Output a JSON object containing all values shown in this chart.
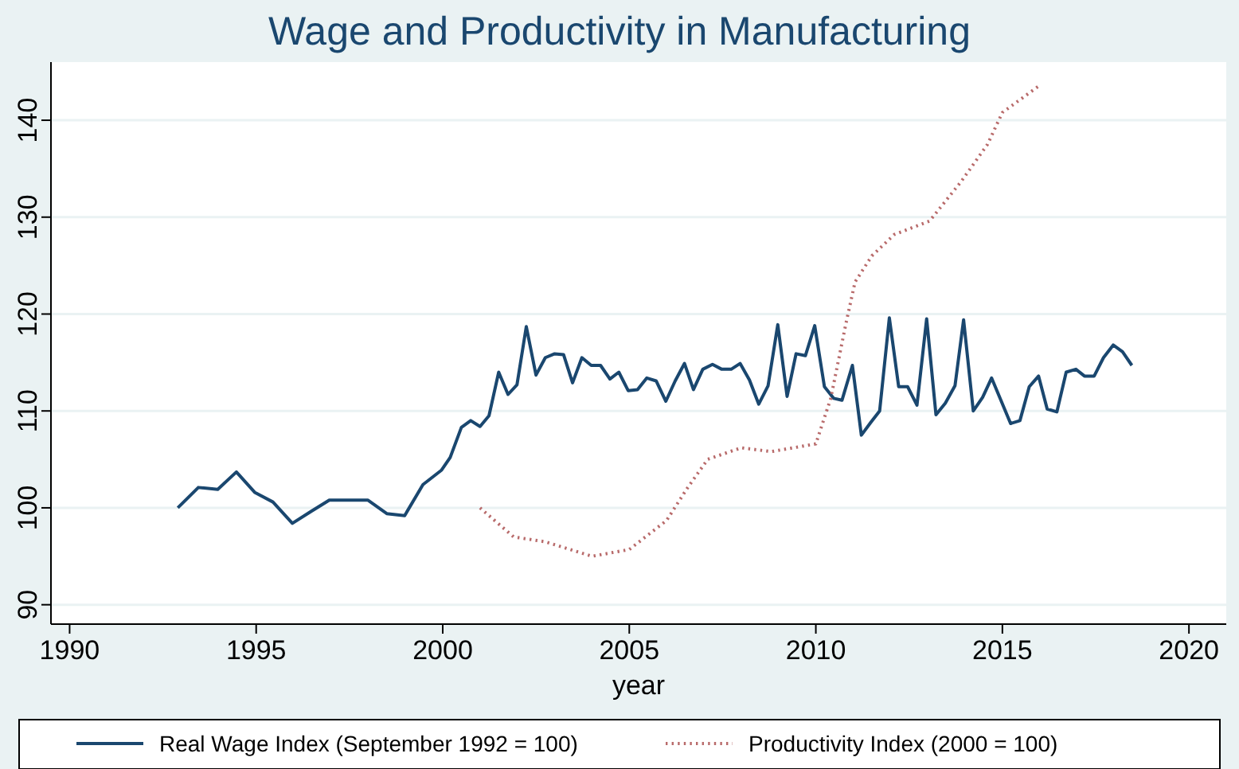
{
  "chart_data": {
    "type": "line",
    "title": "Wage and Productivity in Manufacturing",
    "xlabel": "year",
    "xlim": [
      1989.5,
      2021
    ],
    "xticks": [
      1990,
      1995,
      2000,
      2005,
      2010,
      2015,
      2020
    ],
    "ylim": [
      88,
      146
    ],
    "yticks": [
      90,
      100,
      110,
      120,
      130,
      140
    ],
    "grid": "y",
    "legend": "bottom",
    "marker": "none",
    "series": [
      {
        "name": "Real Wage Index (September 1992 = 100)",
        "color": "#1a476f",
        "line_style": "solid",
        "x": [
          1992.9,
          1993.45,
          1993.97,
          1994.47,
          1994.96,
          1995.45,
          1995.97,
          1996.46,
          1996.96,
          1997.99,
          1998.5,
          1998.98,
          1999.47,
          1999.97,
          2000.2,
          2000.5,
          2000.75,
          2001.0,
          2001.24,
          2001.5,
          2001.75,
          2001.99,
          2002.24,
          2002.5,
          2002.75,
          2003.0,
          2003.24,
          2003.48,
          2003.73,
          2003.98,
          2004.23,
          2004.48,
          2004.72,
          2004.97,
          2005.22,
          2005.47,
          2005.72,
          2005.98,
          2006.23,
          2006.48,
          2006.72,
          2006.97,
          2007.23,
          2007.48,
          2007.73,
          2007.97,
          2008.22,
          2008.47,
          2008.72,
          2008.98,
          2009.23,
          2009.47,
          2009.72,
          2009.97,
          2010.23,
          2010.48,
          2010.7,
          2010.98,
          2011.22,
          2011.47,
          2011.71,
          2011.97,
          2012.22,
          2012.46,
          2012.71,
          2012.97,
          2013.22,
          2013.47,
          2013.73,
          2013.96,
          2014.22,
          2014.47,
          2014.71,
          2014.96,
          2015.22,
          2015.47,
          2015.72,
          2015.97,
          2016.2,
          2016.46,
          2016.71,
          2016.97,
          2017.2,
          2017.46,
          2017.71,
          2017.97,
          2018.22,
          2018.47
        ],
        "values": [
          100.0,
          102.1,
          101.9,
          103.7,
          101.6,
          100.6,
          98.4,
          99.6,
          100.8,
          100.8,
          99.4,
          99.2,
          102.4,
          103.9,
          105.2,
          108.3,
          109.0,
          108.4,
          109.5,
          114.0,
          111.7,
          112.7,
          118.7,
          113.7,
          115.5,
          115.9,
          115.8,
          112.9,
          115.5,
          114.7,
          114.7,
          113.3,
          114.0,
          112.1,
          112.2,
          113.4,
          113.1,
          111.0,
          113.1,
          114.9,
          112.2,
          114.3,
          114.8,
          114.3,
          114.3,
          114.9,
          113.2,
          110.7,
          112.6,
          118.9,
          111.5,
          115.9,
          115.7,
          118.8,
          112.5,
          111.3,
          111.1,
          114.7,
          107.5,
          108.8,
          110.0,
          119.6,
          112.5,
          112.5,
          110.6,
          119.5,
          109.6,
          110.8,
          112.6,
          119.4,
          110.0,
          111.4,
          113.4,
          111.1,
          108.7,
          109.0,
          112.5,
          113.6,
          110.2,
          109.9,
          114.0,
          114.3,
          113.6,
          113.6,
          115.5,
          116.8,
          116.1,
          114.7
        ]
      },
      {
        "name": "Productivity Index (2000 = 100)",
        "color": "#b86a6a",
        "line_style": "dotted",
        "x": [
          2001.0,
          2001.9,
          2002.75,
          2004.0,
          2005.0,
          2006.0,
          2006.55,
          2007.1,
          2008.0,
          2008.8,
          2010.0,
          2010.4,
          2010.8,
          2011.05,
          2011.5,
          2012.1,
          2013.05,
          2013.9,
          2014.6,
          2015.0,
          2016.0
        ],
        "values": [
          100.0,
          97.0,
          96.5,
          95.0,
          95.7,
          98.7,
          102.0,
          105.0,
          106.2,
          105.8,
          106.6,
          111.3,
          118.9,
          123.3,
          126.0,
          128.2,
          129.6,
          133.7,
          137.5,
          140.8,
          143.6
        ]
      }
    ]
  }
}
